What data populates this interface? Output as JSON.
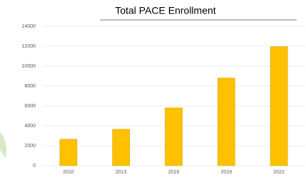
{
  "chart_data": {
    "type": "bar",
    "title": "Total PACE Enrollment",
    "categories": [
      "2010",
      "2013",
      "2016",
      "2019",
      "2022"
    ],
    "values": [
      2650,
      3650,
      5800,
      8800,
      11950
    ],
    "color": "#ffc000",
    "ylim": [
      0,
      14000
    ],
    "yticks": [
      0,
      2000,
      4000,
      6000,
      8000,
      10000,
      12000,
      14000
    ],
    "grid": true
  }
}
